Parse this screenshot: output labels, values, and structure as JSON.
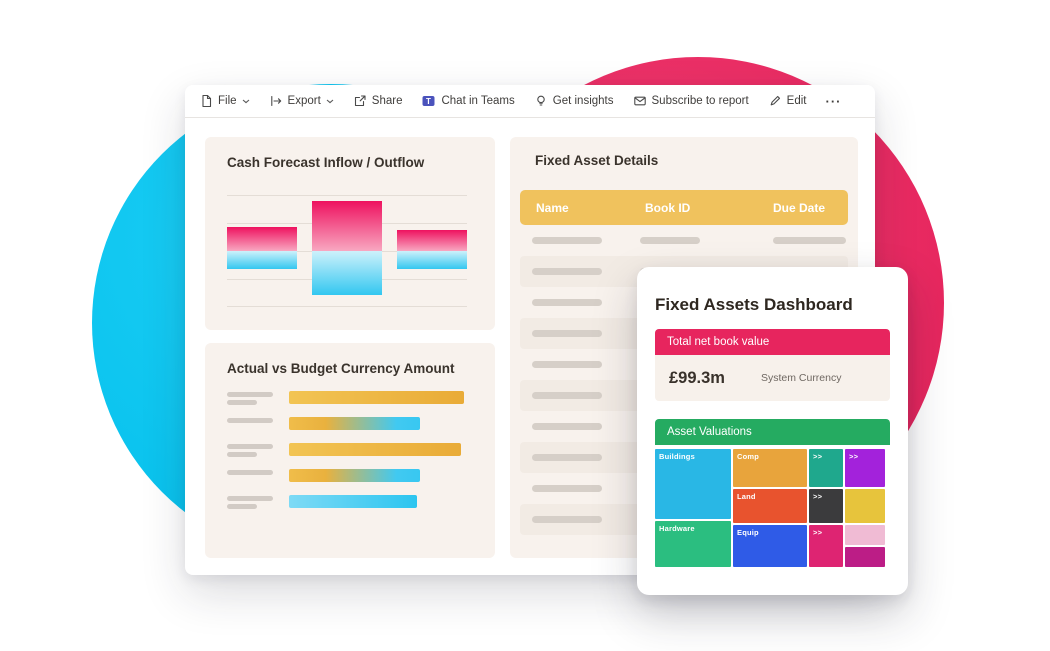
{
  "toolbar": {
    "items": [
      {
        "label": "File",
        "icon": "file-icon",
        "chevron": true
      },
      {
        "label": "Export",
        "icon": "export-icon",
        "chevron": true
      },
      {
        "label": "Share",
        "icon": "share-icon",
        "chevron": false
      },
      {
        "label": "Chat in Teams",
        "icon": "teams-icon",
        "chevron": false
      },
      {
        "label": "Get insights",
        "icon": "lightbulb-icon",
        "chevron": false
      },
      {
        "label": "Subscribe to report",
        "icon": "subscribe-icon",
        "chevron": false
      },
      {
        "label": "Edit",
        "icon": "edit-icon",
        "chevron": false
      }
    ],
    "more_label": "···"
  },
  "cash_forecast": {
    "title": "Cash Forecast Inflow / Outflow",
    "chart_data": {
      "type": "bar",
      "orientation": "column",
      "note": "placeholder chart, no axis or data labels shown",
      "series": [
        {
          "name": "Inflow",
          "color": "#ee125f",
          "relative_heights": [
            24,
            50,
            21
          ]
        },
        {
          "name": "Outflow",
          "color": "#33c7f0",
          "relative_heights": [
            18,
            44,
            18
          ]
        }
      ]
    }
  },
  "actual_budget": {
    "title": "Actual vs Budget Currency Amount",
    "chart_data": {
      "type": "bar",
      "orientation": "horizontal",
      "note": "placeholder chart, no axis or data labels shown",
      "rows": [
        {
          "style": "gold",
          "relative_width": 175,
          "stub_lines": 2
        },
        {
          "style": "gradient",
          "relative_width": 131,
          "stub_lines": 1
        },
        {
          "style": "gold",
          "relative_width": 172,
          "stub_lines": 2
        },
        {
          "style": "gradient",
          "relative_width": 131,
          "stub_lines": 1
        },
        {
          "style": "cyan",
          "relative_width": 128,
          "stub_lines": 2
        }
      ],
      "colors": {
        "gold": "#edb83f",
        "cyan": "#35c8f2"
      }
    }
  },
  "fixed_assets": {
    "title": "Fixed Asset Details",
    "columns": [
      "Name",
      "Book ID",
      "Due Date"
    ],
    "header_color": "#f0c25d",
    "placeholder_rows": 10
  },
  "overlay": {
    "title": "Fixed Assets Dashboard",
    "kpi": {
      "header": "Total net book value",
      "header_color": "#e7255e",
      "value": "£99.3m",
      "caption": "System Currency"
    },
    "valuations": {
      "header": "Asset Valuations",
      "header_color": "#25ab61",
      "treemap": {
        "type": "treemap",
        "tiles": [
          {
            "label": "Buildings",
            "color": "#29b7e5"
          },
          {
            "label": "Hardware",
            "color": "#2bbe80"
          },
          {
            "label": "Comp",
            "color": "#e8a43c"
          },
          {
            "label": "Land",
            "color": "#e8532e"
          },
          {
            "label": "Equip",
            "color": "#2f5be7"
          },
          {
            "label": ">>",
            "color": "#1fa88d"
          },
          {
            "label": ">>",
            "color": "#a322db"
          },
          {
            "label": ">>",
            "color": "#3b3b3d"
          },
          {
            "label": "",
            "color": "#e7c43c"
          },
          {
            "label": ">>",
            "color": "#de2472"
          },
          {
            "label": "",
            "color": "#f0bbd4"
          },
          {
            "label": "",
            "color": "#bc1d86"
          }
        ]
      }
    }
  }
}
